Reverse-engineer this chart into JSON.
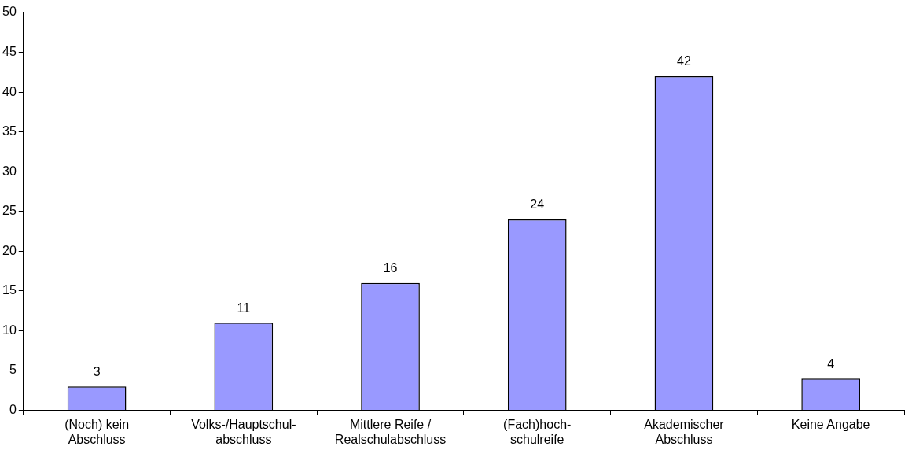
{
  "chart_data": {
    "type": "bar",
    "categories": [
      "(Noch) kein\nAbschluss",
      "Volks-/Hauptschul-\nabschluss",
      "Mittlere Reife /\nRealschulabschluss",
      "(Fach)hoch-\nschulreife",
      "Akademischer\nAbschluss",
      "Keine Angabe"
    ],
    "values": [
      3,
      11,
      16,
      24,
      42,
      4
    ],
    "color": "#9999ff",
    "ylim": [
      0,
      50
    ],
    "yticks": [
      0,
      5,
      10,
      15,
      20,
      25,
      30,
      35,
      40,
      45,
      50
    ],
    "data_labels": true,
    "grid": false,
    "legend": false
  }
}
